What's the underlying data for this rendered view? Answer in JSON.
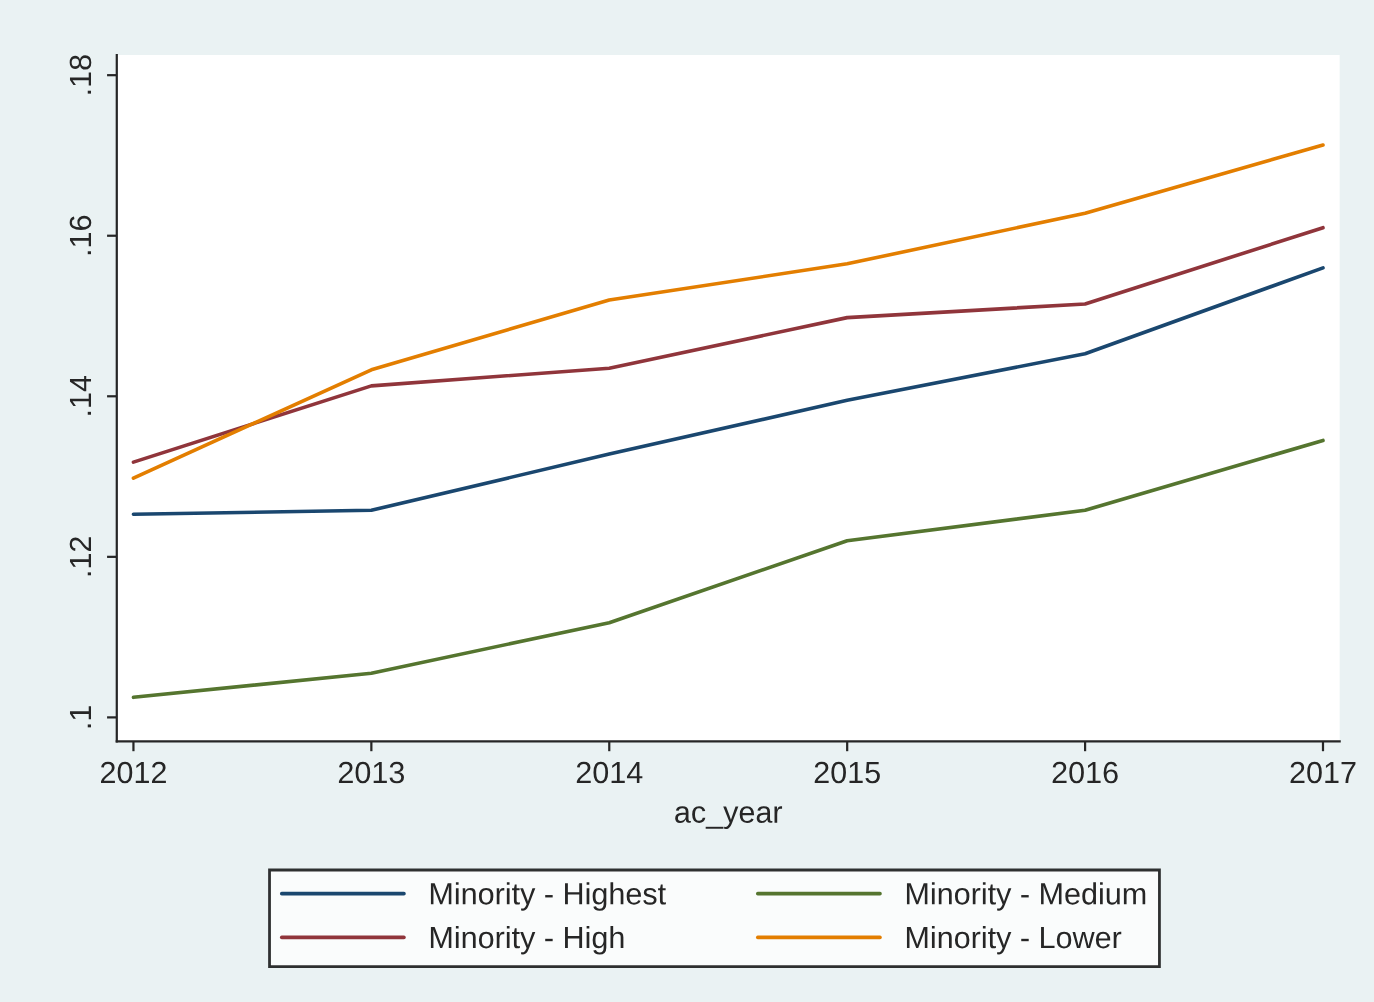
{
  "chart_data": {
    "type": "line",
    "xlabel": "ac_year",
    "x": [
      2012,
      2013,
      2014,
      2015,
      2016,
      2017
    ],
    "xlim": [
      2011.93,
      2017.07
    ],
    "xticks": [
      2012,
      2013,
      2014,
      2015,
      2016,
      2017
    ],
    "ylim": [
      0.097,
      0.1825
    ],
    "yticks": [
      {
        "value": 0.1,
        "label": ".1"
      },
      {
        "value": 0.12,
        "label": ".12"
      },
      {
        "value": 0.14,
        "label": ".14"
      },
      {
        "value": 0.16,
        "label": ".16"
      },
      {
        "value": 0.18,
        "label": ".18"
      }
    ],
    "grid": false,
    "legend": "bottom",
    "marker": "none",
    "line_style": "solid",
    "series": [
      {
        "name": "Minority - Highest",
        "color": "#1a476f",
        "values": [
          0.1253,
          0.1258,
          0.1328,
          0.1395,
          0.1453,
          0.156
        ]
      },
      {
        "name": "Minority - High",
        "color": "#90353b",
        "values": [
          0.1318,
          0.1413,
          0.1435,
          0.1498,
          0.1515,
          0.161
        ]
      },
      {
        "name": "Minority - Medium",
        "color": "#55752f",
        "values": [
          0.1025,
          0.1055,
          0.1118,
          0.122,
          0.1258,
          0.1345
        ]
      },
      {
        "name": "Minority - Lower",
        "color": "#e37e00",
        "values": [
          0.1298,
          0.1433,
          0.152,
          0.1565,
          0.1628,
          0.1713
        ]
      }
    ]
  }
}
